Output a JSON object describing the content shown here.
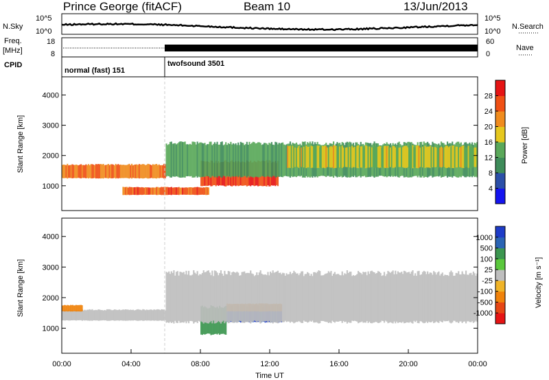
{
  "header": {
    "station": "Prince George (fitACF)",
    "beam": "Beam 10",
    "date": "13/Jun/2013"
  },
  "noise_panel": {
    "left_label": "N.Sky",
    "right_label": "N.Search",
    "left_ticks": [
      "10^5",
      "10^0"
    ],
    "right_ticks": [
      "10^5",
      "10^0"
    ]
  },
  "freq_panel": {
    "left_label_1": "Freq.",
    "left_label_2": "[MHz]",
    "right_label": "Nave",
    "left_ticks": [
      "18",
      "8"
    ],
    "right_ticks": [
      "60",
      "0"
    ]
  },
  "cpid": {
    "label": "CPID",
    "modes": [
      {
        "name": "normal (fast) 151",
        "start_hour": 0,
        "end_hour": 6
      },
      {
        "name": "twofsound 3501",
        "start_hour": 6,
        "end_hour": 24
      }
    ]
  },
  "x_axis": {
    "label": "Time UT",
    "ticks": [
      "00:00",
      "04:00",
      "08:00",
      "12:00",
      "16:00",
      "20:00",
      "00:00"
    ]
  },
  "power_panel": {
    "ylabel": "Slant Range [km]",
    "yticks": [
      "1000",
      "2000",
      "3000",
      "4000"
    ],
    "colorbar_label": "Power [dB]",
    "colorbar_ticks": [
      "4",
      "8",
      "12",
      "16",
      "20",
      "24",
      "28"
    ],
    "colors": [
      "#1414f0",
      "#2b4fa8",
      "#3e8c5a",
      "#5aa85a",
      "#e6c81e",
      "#f08c1e",
      "#f05014",
      "#e61414"
    ]
  },
  "velocity_panel": {
    "ylabel": "Slant Range [km]",
    "yticks": [
      "1000",
      "2000",
      "3000",
      "4000"
    ],
    "colorbar_label": "Velocity [m s⁻¹]",
    "colorbar_ticks": [
      "1000",
      "500",
      "100",
      "25",
      "-25",
      "-100",
      "-500",
      "-1000"
    ],
    "colors": [
      "#1e3cc8",
      "#2a64b4",
      "#3c9650",
      "#5ac83c",
      "#bebebe",
      "#f0b428",
      "#f0820a",
      "#e64614",
      "#e61414"
    ]
  },
  "chart_data": [
    {
      "type": "heatmap",
      "title": "Prince George (fitACF) Beam 10 13/Jun/2013",
      "xlabel": "Time UT",
      "ylabel": "Slant Range [km]",
      "xlim": [
        0,
        24
      ],
      "ylim": [
        180,
        4600
      ],
      "colorbar": "Power [dB]",
      "clim": [
        0,
        30
      ],
      "echo_bands": [
        {
          "t_start": 0,
          "t_end": 6,
          "range_low": 1250,
          "range_high": 1700,
          "power_db": 22
        },
        {
          "t_start": 3.5,
          "t_end": 8.5,
          "range_low": 700,
          "range_high": 950,
          "power_db": 24
        },
        {
          "t_start": 8,
          "t_end": 12.5,
          "range_low": 1000,
          "range_high": 1800,
          "power_db": 26
        },
        {
          "t_start": 6,
          "t_end": 24,
          "range_low": 1300,
          "range_high": 2400,
          "power_db": 12
        },
        {
          "t_start": 13,
          "t_end": 24,
          "range_low": 1600,
          "range_high": 2300,
          "power_db": 16
        }
      ]
    },
    {
      "type": "heatmap",
      "xlabel": "Time UT",
      "ylabel": "Slant Range [km]",
      "xlim": [
        0,
        24
      ],
      "ylim": [
        180,
        4600
      ],
      "colorbar": "Velocity [m s⁻¹]",
      "clim": [
        -1000,
        1000
      ],
      "echo_bands": [
        {
          "t_start": 0,
          "t_end": 6,
          "range_low": 1250,
          "range_high": 1600,
          "velocity": 0
        },
        {
          "t_start": 0,
          "t_end": 1.2,
          "range_low": 1550,
          "range_high": 1750,
          "velocity": -300
        },
        {
          "t_start": 8,
          "t_end": 9.5,
          "range_low": 800,
          "range_high": 1700,
          "velocity": 200
        },
        {
          "t_start": 9.5,
          "t_end": 12.7,
          "range_low": 1200,
          "range_high": 1750,
          "velocity": 800
        },
        {
          "t_start": 9.5,
          "t_end": 12.7,
          "range_low": 1550,
          "range_high": 1800,
          "velocity": -300
        },
        {
          "t_start": 6,
          "t_end": 24,
          "range_low": 1200,
          "range_high": 2800,
          "velocity": 0
        }
      ]
    }
  ]
}
